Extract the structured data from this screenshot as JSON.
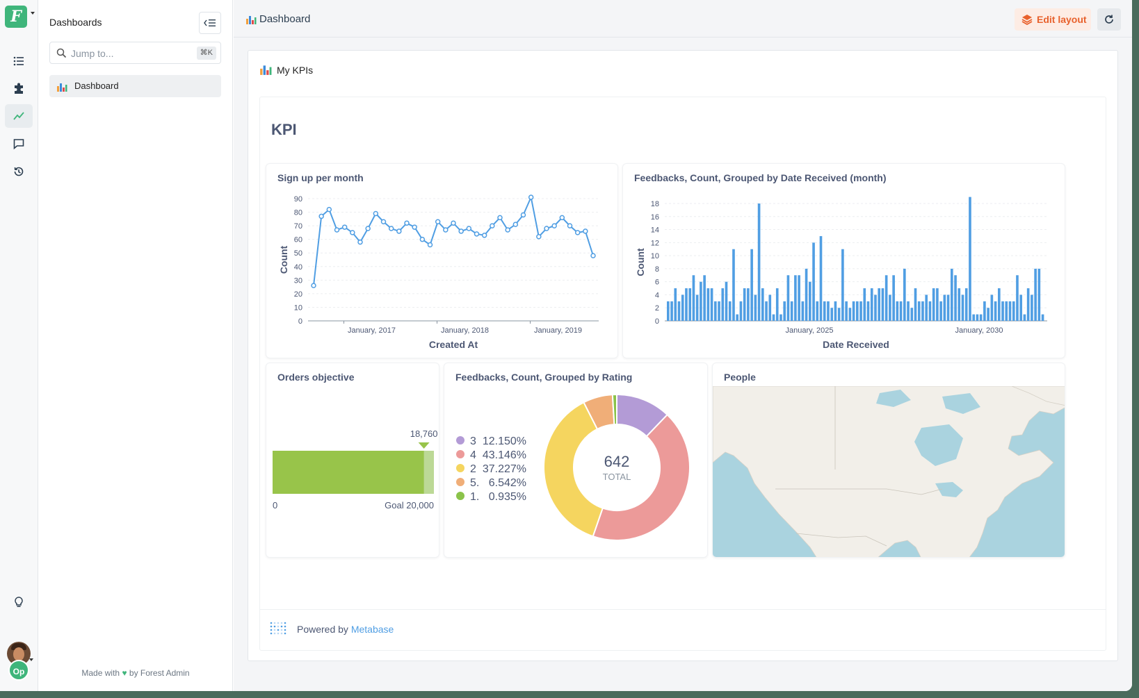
{
  "sidebar": {
    "title": "Dashboards",
    "search_placeholder": "Jump to...",
    "search_shortcut": "⌘K",
    "items": [
      {
        "label": "Dashboard"
      }
    ],
    "footer_made_with": "Made with",
    "footer_by": "by Forest Admin"
  },
  "rail": {
    "logo_letter": "F",
    "icons": [
      "list-icon",
      "puzzle-icon",
      "chart-line-icon",
      "chat-icon",
      "history-icon",
      "lightbulb-icon"
    ],
    "user_badge": "Op"
  },
  "topbar": {
    "title": "Dashboard",
    "edit_layout_label": "Edit layout"
  },
  "panel": {
    "heading": "My KPIs"
  },
  "metabase": {
    "title": "KPI",
    "powered_by": "Powered by",
    "powered_link": "Metabase"
  },
  "colors": {
    "accent_green": "#3fb57b",
    "line_blue": "#509ee3",
    "edit_orange": "#e8612c",
    "progress_green": "#98c44a"
  },
  "chart_data": [
    {
      "type": "line",
      "title": "Sign up per month",
      "xlabel": "Created At",
      "ylabel": "Count",
      "ylim": [
        0,
        90
      ],
      "yticks": [
        0,
        10,
        20,
        30,
        40,
        50,
        60,
        70,
        80,
        90
      ],
      "xtick_labels": [
        "January, 2017",
        "January, 2018",
        "January, 2019"
      ],
      "values": [
        26,
        77,
        82,
        67,
        69,
        65,
        58,
        68,
        79,
        73,
        68,
        66,
        72,
        69,
        60,
        56,
        73,
        67,
        72,
        66,
        68,
        64,
        63,
        70,
        76,
        67,
        71,
        78,
        91,
        62,
        68,
        70,
        76,
        70,
        65,
        66,
        48
      ]
    },
    {
      "type": "bar",
      "title": "Feedbacks, Count, Grouped by Date Received (month)",
      "xlabel": "Date Received",
      "ylabel": "Count",
      "ylim": [
        0,
        18
      ],
      "yticks": [
        0,
        2,
        4,
        6,
        8,
        10,
        12,
        14,
        16,
        18
      ],
      "xtick_labels": [
        "January, 2025",
        "January, 2030"
      ],
      "values": [
        3,
        3,
        5,
        3,
        4,
        5,
        5,
        7,
        4,
        6,
        7,
        5,
        5,
        3,
        3,
        5,
        6,
        3,
        11,
        1,
        3,
        5,
        5,
        11,
        4,
        18,
        5,
        3,
        4,
        1,
        5,
        1,
        3,
        7,
        3,
        7,
        7,
        3,
        8,
        6,
        12,
        3,
        13,
        3,
        3,
        2,
        3,
        2,
        11,
        3,
        2,
        3,
        3,
        3,
        5,
        3,
        5,
        4,
        5,
        5,
        7,
        4,
        7,
        3,
        3,
        8,
        3,
        2,
        5,
        3,
        3,
        4,
        3,
        5,
        5,
        3,
        4,
        4,
        8,
        7,
        5,
        4,
        5,
        19,
        1,
        1,
        1,
        3,
        2,
        4,
        3,
        5,
        3,
        3,
        3,
        3,
        7,
        4,
        1,
        5,
        4,
        8,
        8,
        1
      ]
    },
    {
      "type": "progress",
      "title": "Orders objective",
      "value": 18760,
      "value_label": "18,760",
      "goal": 20000,
      "goal_label": "Goal 20,000",
      "min_label": "0"
    },
    {
      "type": "pie",
      "title": "Feedbacks, Count, Grouped by Rating",
      "total": "642",
      "total_label": "TOTAL",
      "slices": [
        {
          "key": "3",
          "label": "12.150%",
          "percent": 12.15,
          "color": "#b39bd6"
        },
        {
          "key": "4",
          "label": "43.146%",
          "percent": 43.146,
          "color": "#ec9a99"
        },
        {
          "key": "2",
          "label": "37.227%",
          "percent": 37.227,
          "color": "#f5d55f"
        },
        {
          "key": "5.",
          "label": "6.542%",
          "percent": 6.542,
          "color": "#f0ae78"
        },
        {
          "key": "1.",
          "label": "0.935%",
          "percent": 0.935,
          "color": "#8bc34a"
        }
      ]
    }
  ],
  "map": {
    "title": "People"
  }
}
